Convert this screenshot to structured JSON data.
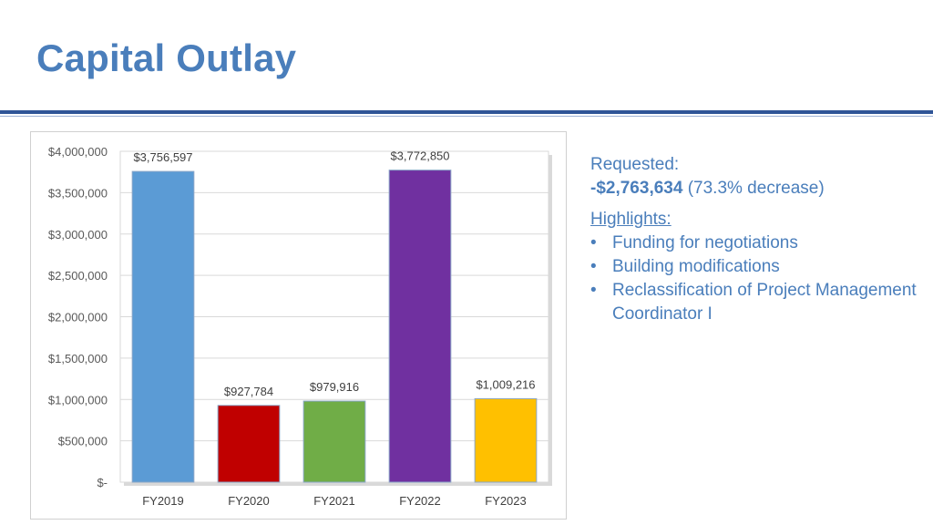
{
  "slide": {
    "title": "Capital Outlay"
  },
  "summary": {
    "requested_label": "Requested:",
    "decrease_amount": "-$2,763,634",
    "decrease_note": "(73.3% decrease)",
    "highlights_heading": "Highlights:",
    "highlights": [
      "Funding for negotiations",
      "Building modifications",
      "Reclassification of Project Management Coordinator I"
    ]
  },
  "colors": {
    "title": "#4a7ebb",
    "text": "#4a7ebb",
    "rule": "#2f5597"
  },
  "chart_data": {
    "type": "bar",
    "categories": [
      "FY2019",
      "FY2020",
      "FY2021",
      "FY2022",
      "FY2023"
    ],
    "values": [
      3756597,
      927784,
      979916,
      3772850,
      1009216
    ],
    "data_labels": [
      "$3,756,597",
      "$927,784",
      "$979,916",
      "$3,772,850",
      "$1,009,216"
    ],
    "bar_colors": [
      "#5b9bd5",
      "#c00000",
      "#70ad47",
      "#7030a0",
      "#ffc000"
    ],
    "ylim": [
      0,
      4000000
    ],
    "yticks": [
      0,
      500000,
      1000000,
      1500000,
      2000000,
      2500000,
      3000000,
      3500000,
      4000000
    ],
    "ytick_labels": [
      "$-",
      "$500,000",
      "$1,000,000",
      "$1,500,000",
      "$2,000,000",
      "$2,500,000",
      "$3,000,000",
      "$3,500,000",
      "$4,000,000"
    ],
    "grid": true,
    "title": "",
    "xlabel": "",
    "ylabel": ""
  }
}
